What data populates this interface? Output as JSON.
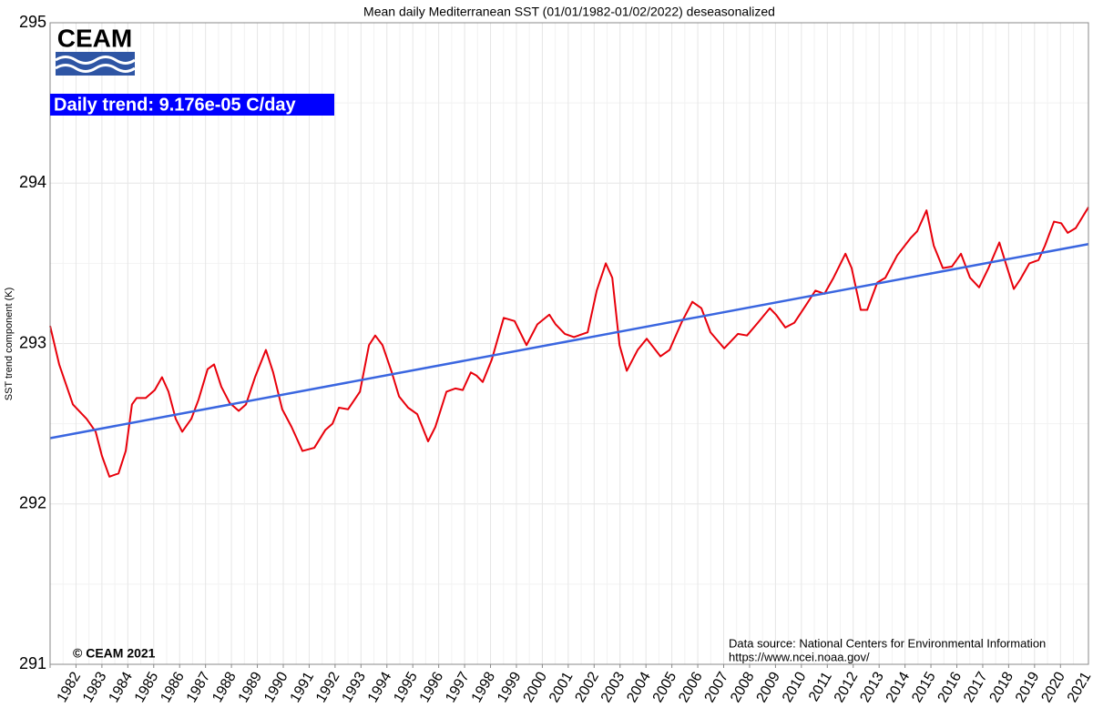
{
  "logo": "CEAM",
  "chart_data": {
    "type": "line",
    "title": "Mean daily Mediterranean SST (01/01/1982-01/02/2022) deseasonalized",
    "ylabel": "SST trend component (K)",
    "annotations": [
      "Daily trend: 9.176e-05 C/day",
      "© CEAM 2021",
      "Data source: National Centers for Environmental Information",
      "https://www.ncei.noaa.gov/"
    ],
    "xlim": [
      1982,
      2022.08
    ],
    "xticks": [
      1982,
      1983,
      1984,
      1985,
      1986,
      1987,
      1988,
      1989,
      1990,
      1991,
      1992,
      1993,
      1994,
      1995,
      1996,
      1997,
      1998,
      1999,
      2000,
      2001,
      2002,
      2003,
      2004,
      2005,
      2006,
      2007,
      2008,
      2009,
      2010,
      2011,
      2012,
      2013,
      2014,
      2015,
      2016,
      2017,
      2018,
      2019,
      2020,
      2021
    ],
    "ylim": [
      291,
      295
    ],
    "yticks": [
      291,
      292,
      293,
      294,
      295
    ],
    "grid": true,
    "series": [
      {
        "color": "#e8000b",
        "x": [
          1982.0,
          1982.35,
          1982.88,
          1983.41,
          1983.76,
          1984.0,
          1984.29,
          1984.64,
          1984.92,
          1985.16,
          1985.34,
          1985.69,
          1986.04,
          1986.32,
          1986.57,
          1986.85,
          1987.1,
          1987.45,
          1987.73,
          1988.08,
          1988.33,
          1988.61,
          1988.93,
          1989.28,
          1989.56,
          1989.91,
          1990.33,
          1990.61,
          1990.96,
          1991.32,
          1991.74,
          1992.2,
          1992.62,
          1992.9,
          1993.15,
          1993.5,
          1993.96,
          1994.31,
          1994.55,
          1994.83,
          1995.19,
          1995.47,
          1995.82,
          1996.17,
          1996.59,
          1996.87,
          1997.3,
          1997.65,
          1997.93,
          1998.24,
          1998.46,
          1998.7,
          1999.05,
          1999.51,
          1999.93,
          2000.39,
          2000.81,
          2001.27,
          2001.51,
          2001.87,
          2002.22,
          2002.75,
          2003.1,
          2003.45,
          2003.7,
          2003.98,
          2004.26,
          2004.68,
          2005.03,
          2005.56,
          2005.91,
          2006.37,
          2006.79,
          2007.14,
          2007.49,
          2008.02,
          2008.55,
          2008.9,
          2009.32,
          2009.78,
          2010.02,
          2010.38,
          2010.73,
          2011.18,
          2011.54,
          2011.89,
          2012.24,
          2012.7,
          2012.94,
          2013.29,
          2013.54,
          2013.93,
          2014.24,
          2014.7,
          2015.23,
          2015.47,
          2015.83,
          2016.11,
          2016.46,
          2016.81,
          2017.16,
          2017.51,
          2017.86,
          2018.22,
          2018.64,
          2018.85,
          2019.2,
          2019.45,
          2019.8,
          2020.15,
          2020.4,
          2020.75,
          2021.03,
          2021.28,
          2021.59,
          2022.08
        ],
        "values": [
          293.11,
          292.87,
          292.62,
          292.53,
          292.45,
          292.3,
          292.17,
          292.19,
          292.33,
          292.62,
          292.66,
          292.66,
          292.71,
          292.79,
          292.7,
          292.53,
          292.45,
          292.53,
          292.65,
          292.84,
          292.87,
          292.73,
          292.63,
          292.58,
          292.62,
          292.79,
          292.96,
          292.82,
          292.59,
          292.48,
          292.33,
          292.35,
          292.46,
          292.5,
          292.6,
          292.59,
          292.7,
          292.99,
          293.05,
          292.99,
          292.82,
          292.67,
          292.6,
          292.56,
          292.39,
          292.48,
          292.7,
          292.72,
          292.71,
          292.82,
          292.8,
          292.76,
          292.9,
          293.16,
          293.14,
          292.99,
          293.12,
          293.18,
          293.12,
          293.06,
          293.04,
          293.07,
          293.33,
          293.5,
          293.41,
          292.99,
          292.83,
          292.96,
          293.03,
          292.92,
          292.96,
          293.13,
          293.26,
          293.22,
          293.07,
          292.97,
          293.06,
          293.05,
          293.13,
          293.22,
          293.18,
          293.1,
          293.13,
          293.24,
          293.33,
          293.31,
          293.41,
          293.56,
          293.47,
          293.21,
          293.21,
          293.38,
          293.41,
          293.55,
          293.66,
          293.7,
          293.83,
          293.61,
          293.47,
          293.48,
          293.56,
          293.41,
          293.35,
          293.47,
          293.63,
          293.52,
          293.34,
          293.4,
          293.5,
          293.52,
          293.61,
          293.76,
          293.75,
          293.69,
          293.72,
          293.85
        ]
      },
      {
        "color": "#3a66e0",
        "x": [
          1982,
          2022.08
        ],
        "values": [
          292.41,
          293.62
        ]
      }
    ]
  }
}
